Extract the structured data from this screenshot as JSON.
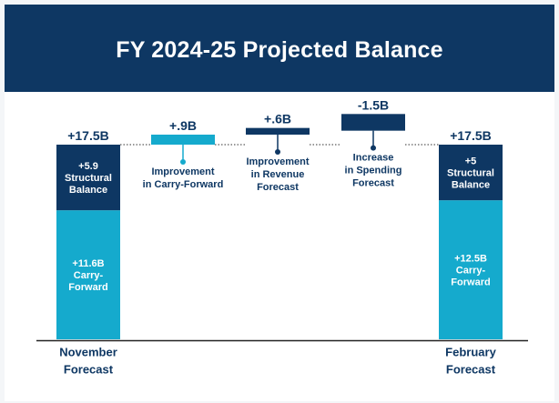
{
  "title": "FY 2024-25 Projected Balance",
  "colors": {
    "header_bg": "#0e3763",
    "dark_navy": "#0e3763",
    "light_blue": "#15aacd",
    "connector": "#333333",
    "axis": "#222222"
  },
  "chart_data": {
    "type": "waterfall",
    "unit": "$B",
    "totals": [
      {
        "name": "November Forecast",
        "label_lines": [
          "November",
          "Forecast"
        ],
        "total_label": "+17.5B",
        "total": 17.5,
        "segments": [
          {
            "name": "Carry-Forward",
            "value": 11.6,
            "color": "#15aacd",
            "label_lines": [
              "+11.6B",
              "Carry-",
              "Forward"
            ]
          },
          {
            "name": "Structural Balance",
            "value": 5.9,
            "color": "#0e3763",
            "label_lines": [
              "+5.9",
              "Structural",
              "Balance"
            ]
          }
        ]
      },
      {
        "name": "February Forecast",
        "label_lines": [
          "February",
          "Forecast"
        ],
        "total_label": "+17.5B",
        "total": 17.5,
        "segments": [
          {
            "name": "Carry-Forward",
            "value": 12.5,
            "color": "#15aacd",
            "label_lines": [
              "+12.5B",
              "Carry-",
              "Forward"
            ]
          },
          {
            "name": "Structural Balance",
            "value": 5,
            "color": "#0e3763",
            "label_lines": [
              "+5",
              "Structural",
              "Balance"
            ]
          }
        ]
      }
    ],
    "changes": [
      {
        "value_label": "+.9B",
        "value": 0.9,
        "color": "#15aacd",
        "label_lines": [
          "Improvement",
          "in Carry-Forward"
        ]
      },
      {
        "value_label": "+.6B",
        "value": 0.6,
        "color": "#0e3763",
        "label_lines": [
          "Improvement",
          "in Revenue",
          "Forecast"
        ]
      },
      {
        "value_label": "-1.5B",
        "value": -1.5,
        "color": "#0e3763",
        "label_lines": [
          "Increase",
          "in Spending",
          "Forecast"
        ]
      }
    ]
  }
}
